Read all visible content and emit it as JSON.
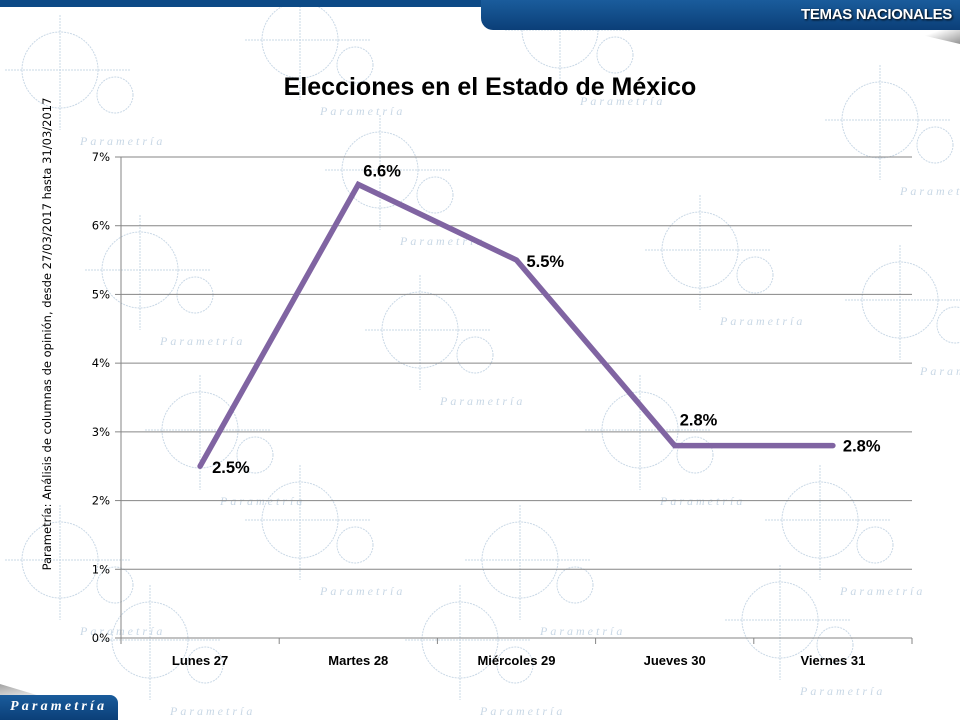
{
  "header": {
    "section_label": "TEMAS NACIONALES",
    "brand_color": "#0b3f78"
  },
  "footer": {
    "logo_text": "Parametría"
  },
  "source_note": "Parametría: Análisis de columnas de opinión, desde 27/03/2017  hasta  31/03/2017",
  "chart_data": {
    "type": "line",
    "title": "Elecciones en el Estado de México",
    "xlabel": "",
    "ylabel": "",
    "categories": [
      "Lunes 27",
      "Martes 28",
      "Miércoles 29",
      "Jueves 30",
      "Viernes 31"
    ],
    "series": [
      {
        "name": "Elecciones en el Estado de México",
        "values": [
          2.5,
          6.6,
          5.5,
          2.8,
          2.8
        ],
        "labels": [
          "2.5%",
          "6.6%",
          "5.5%",
          "2.8%",
          "2.8%"
        ],
        "color": "#8064a2"
      }
    ],
    "ylim": [
      0,
      7
    ],
    "yticks": [
      0,
      1,
      2,
      3,
      4,
      5,
      6,
      7
    ],
    "ytick_labels": [
      "0%",
      "1%",
      "2%",
      "3%",
      "4%",
      "5%",
      "6%",
      "7%"
    ],
    "grid": true,
    "legend": "none"
  }
}
